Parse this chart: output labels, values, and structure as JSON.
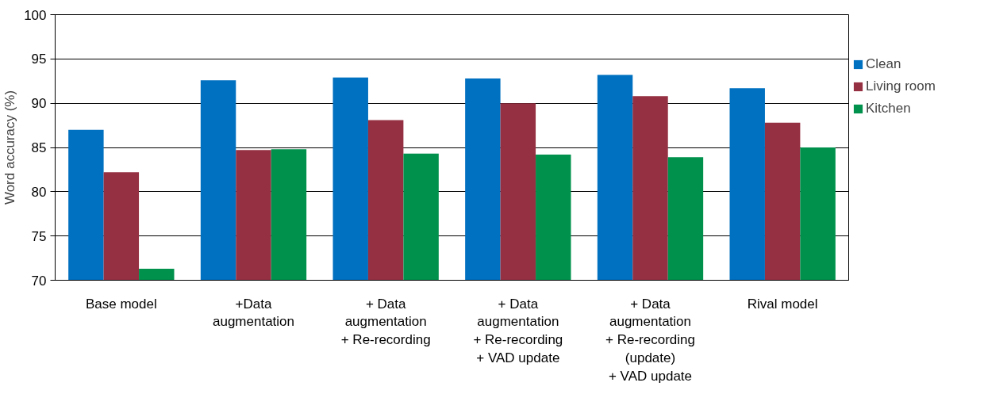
{
  "chart_data": {
    "type": "bar",
    "ylabel": "Word accuracy (%)",
    "categories": [
      "Base model",
      "+Data\naugmentation",
      "+ Data\naugmentation\n+ Re-recording",
      "+ Data\naugmentation\n+ Re-recording\n+ VAD update",
      "+ Data\naugmentation\n+ Re-recording\n(update)\n+ VAD update",
      "Rival model"
    ],
    "series": [
      {
        "name": "Clean",
        "color": "#0070c0",
        "values": [
          87.0,
          92.6,
          92.9,
          92.8,
          93.2,
          91.7
        ]
      },
      {
        "name": "Living room",
        "color": "#953042",
        "values": [
          82.2,
          84.7,
          88.1,
          90.0,
          90.8,
          87.8
        ]
      },
      {
        "name": "Kitchen",
        "color": "#00914c",
        "values": [
          71.3,
          84.8,
          84.3,
          84.2,
          83.9,
          85.0
        ]
      }
    ],
    "ylim": [
      70,
      100
    ],
    "yticks": [
      70,
      75,
      80,
      85,
      90,
      95,
      100
    ],
    "grid": "y",
    "legend": "right"
  }
}
